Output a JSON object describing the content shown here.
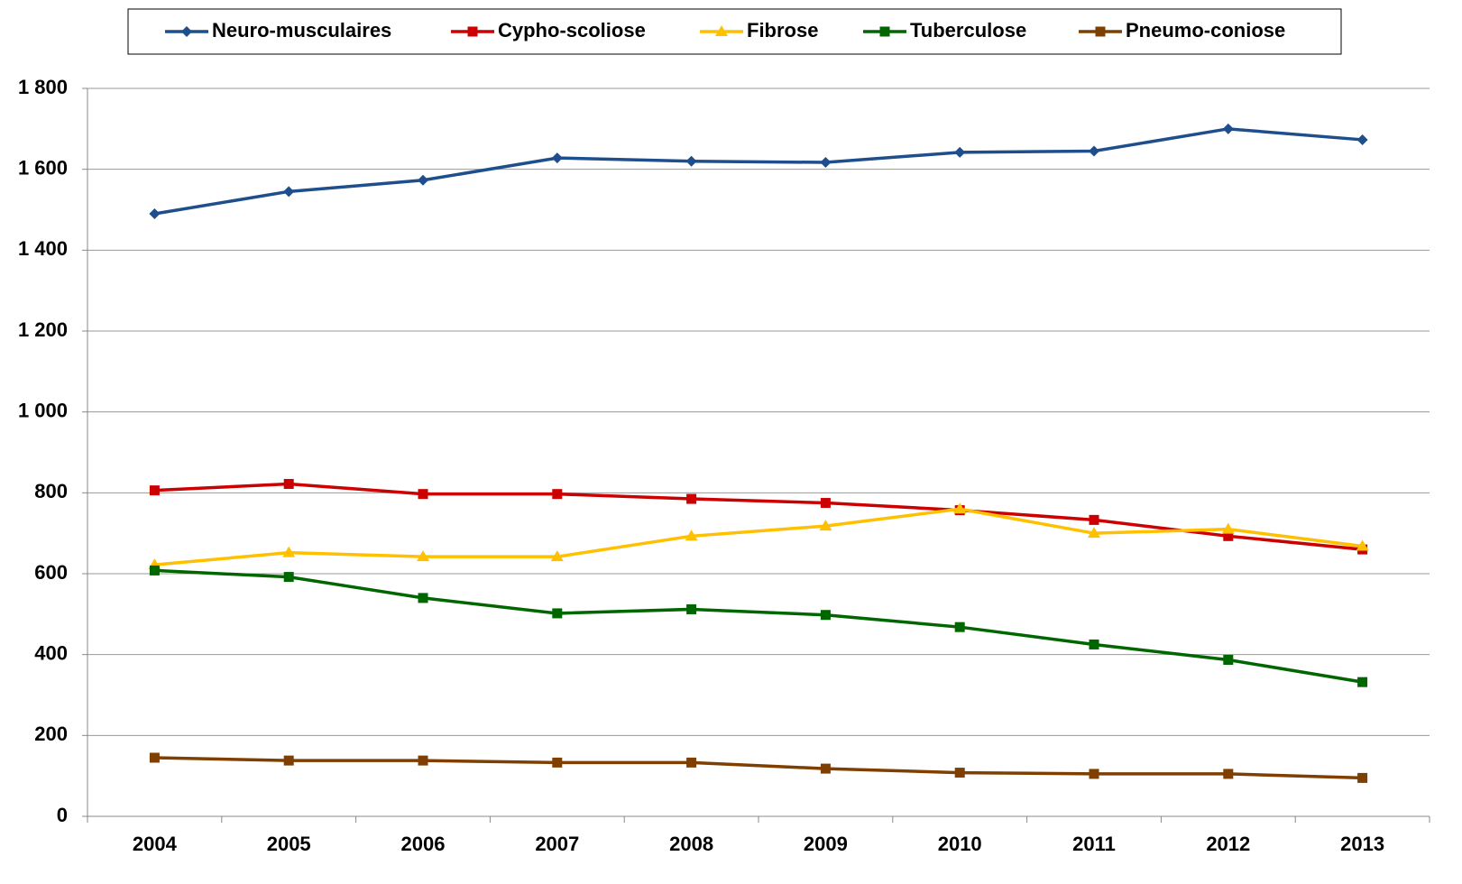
{
  "chart_data": {
    "type": "line",
    "categories": [
      "2004",
      "2005",
      "2006",
      "2007",
      "2008",
      "2009",
      "2010",
      "2011",
      "2012",
      "2013"
    ],
    "series": [
      {
        "name": "Neuro-musculaires",
        "color": "#1f4e8c",
        "marker": "diamond",
        "values": [
          1490,
          1545,
          1573,
          1628,
          1620,
          1617,
          1642,
          1645,
          1700,
          1673
        ]
      },
      {
        "name": "Cypho-scoliose",
        "color": "#cc0000",
        "marker": "square",
        "values": [
          806,
          822,
          797,
          797,
          785,
          775,
          757,
          733,
          693,
          660
        ]
      },
      {
        "name": "Fibrose",
        "color": "#ffc000",
        "marker": "triangle",
        "values": [
          622,
          652,
          642,
          642,
          693,
          718,
          760,
          700,
          710,
          668
        ]
      },
      {
        "name": "Tuberculose",
        "color": "#006600",
        "marker": "square",
        "values": [
          608,
          592,
          540,
          502,
          512,
          498,
          468,
          425,
          387,
          332
        ]
      },
      {
        "name": "Pneumo-coniose",
        "color": "#7f3f00",
        "marker": "square",
        "values": [
          145,
          138,
          138,
          133,
          133,
          118,
          108,
          105,
          105,
          95
        ]
      }
    ],
    "ylim": [
      0,
      1800
    ],
    "yticks": [
      0,
      200,
      400,
      600,
      800,
      {
        "value": 1000,
        "label": "1 000"
      },
      {
        "value": 1200,
        "label": "1 200"
      },
      {
        "value": 1400,
        "label": "1 400"
      },
      {
        "value": 1600,
        "label": "1 600"
      },
      {
        "value": 1800,
        "label": "1 800"
      }
    ],
    "grid": true,
    "legend": "top"
  }
}
